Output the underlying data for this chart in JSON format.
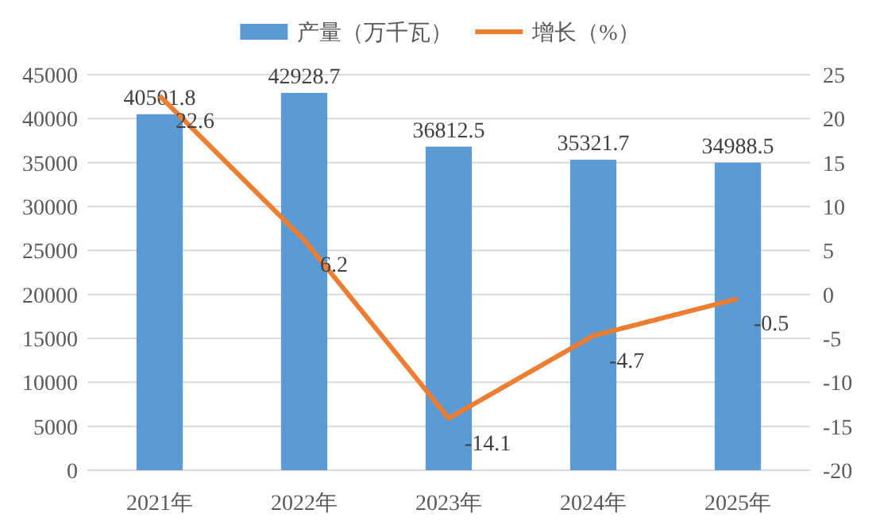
{
  "chart_data": {
    "type": "bar",
    "categories": [
      "2021年",
      "2022年",
      "2023年",
      "2024年",
      "2025年"
    ],
    "series": [
      {
        "name": "产量（万千瓦）",
        "color": "#5b9bd5",
        "values": [
          40501.8,
          42928.7,
          36812.5,
          35321.7,
          34988.5
        ]
      },
      {
        "name": "增长（%）",
        "type": "line",
        "axis": "y2",
        "color": "#ed7d31",
        "values": [
          22.6,
          6.2,
          -14.1,
          -4.7,
          -0.5
        ]
      }
    ],
    "ylim": [
      0,
      45000
    ],
    "yticks": [
      0,
      5000,
      10000,
      15000,
      20000,
      25000,
      30000,
      35000,
      40000,
      45000
    ],
    "y2lim": [
      -20,
      25
    ],
    "y2ticks": [
      -20,
      -15,
      -10,
      -5,
      0,
      5,
      10,
      15,
      20,
      25
    ],
    "grid": "y",
    "legend": "top",
    "data_labels": true,
    "marker": "none"
  }
}
